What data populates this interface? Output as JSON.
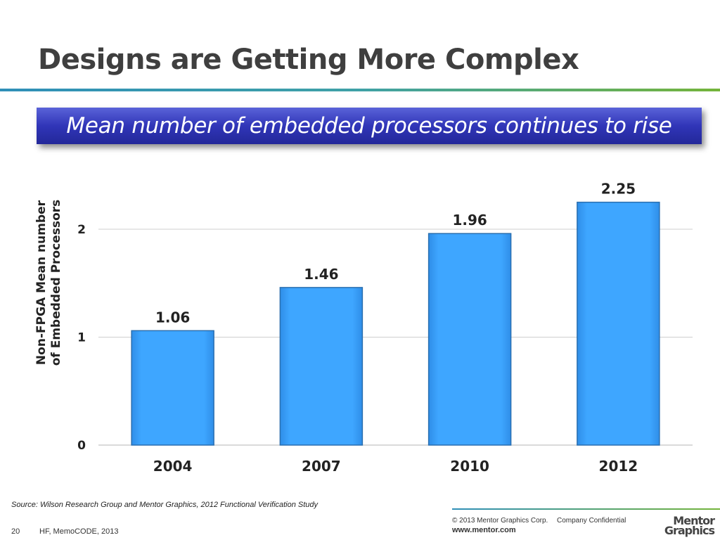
{
  "slide": {
    "title": "Designs are Getting More Complex",
    "subtitle": "Mean number of embedded processors continues to rise"
  },
  "chart_data": {
    "type": "bar",
    "categories": [
      "2004",
      "2007",
      "2010",
      "2012"
    ],
    "values": [
      1.06,
      1.46,
      1.96,
      2.25
    ],
    "data_labels": [
      "1.06",
      "1.46",
      "1.96",
      "2.25"
    ],
    "ylabel_lines": [
      "Non-FPGA Mean number",
      "of Embedded Processors"
    ],
    "yticks": [
      "0",
      "1",
      "2"
    ],
    "ylim": [
      0,
      2.5
    ],
    "grid": true,
    "legend": "none",
    "bar_color": "#3aa3ff",
    "bar_edge_color": "#2a6fb0"
  },
  "footer": {
    "source": "Source: Wilson Research Group and Mentor Graphics, 2012 Functional Verification Study",
    "page_number": "20",
    "event": "HF, MemoCODE, 2013",
    "copyright": "© 2013 Mentor Graphics Corp.",
    "confidential": "Company Confidential",
    "url": "www.mentor.com",
    "logo_line1": "Mentor",
    "logo_line2": "Graphics"
  }
}
